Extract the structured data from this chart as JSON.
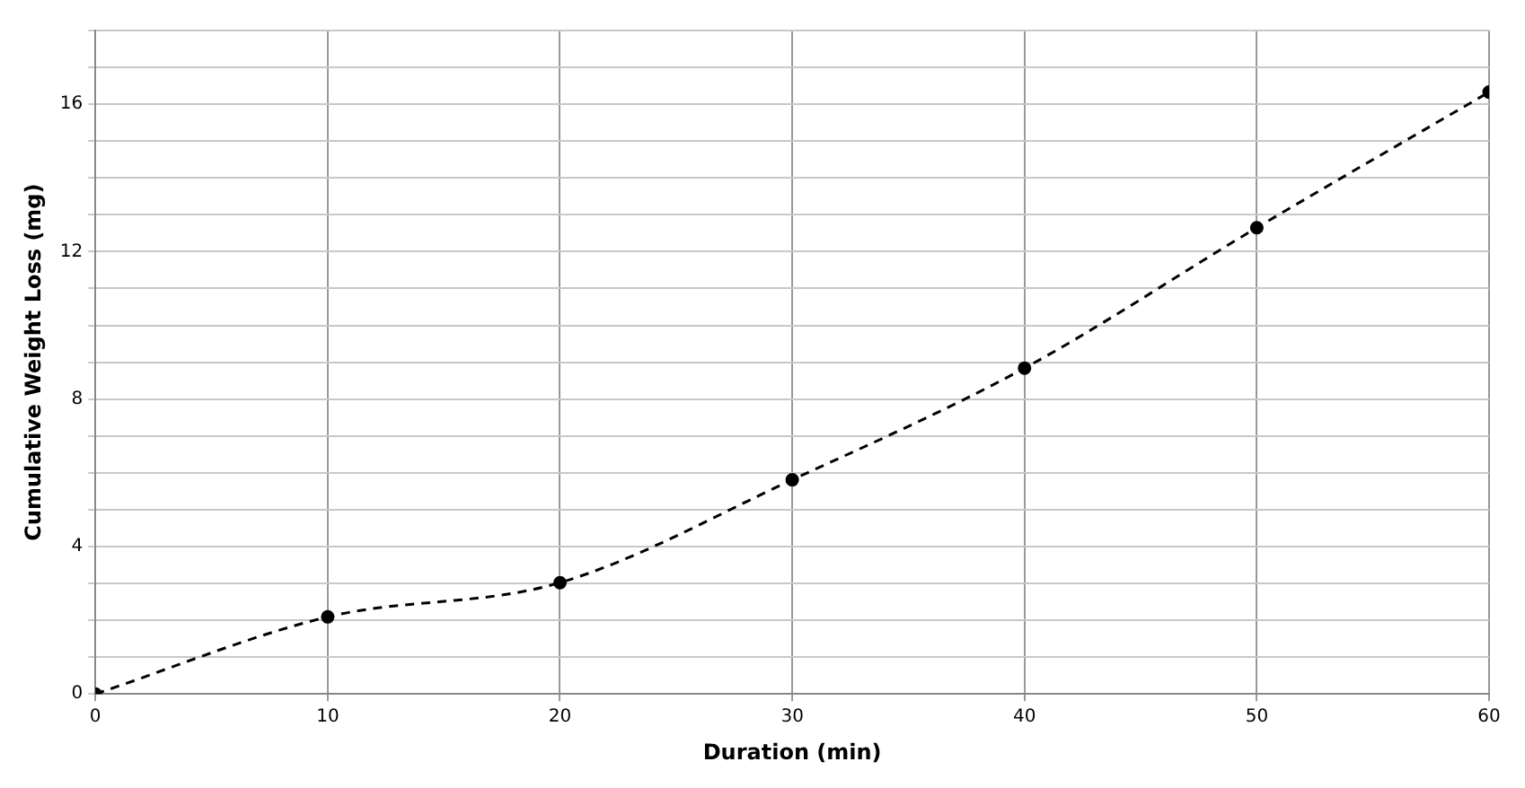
{
  "chart_data": {
    "type": "line",
    "xlabel": "Duration (min)",
    "ylabel": "Cumulative Weight Loss (mg)",
    "x": [
      0,
      10,
      20,
      30,
      40,
      50,
      60
    ],
    "series": [
      {
        "color": "#000000",
        "values": [
          0,
          2.09,
          3.02,
          5.81,
          8.84,
          12.65,
          16.33
        ]
      }
    ],
    "xlim": [
      0,
      60
    ],
    "xticks": [
      0,
      10,
      20,
      30,
      40,
      50,
      60
    ],
    "ylim": [
      0,
      18
    ],
    "yticks": [
      0,
      {
        "value": 1,
        "label": null
      },
      {
        "value": 2,
        "label": null
      },
      {
        "value": 3,
        "label": null
      },
      4,
      {
        "value": 5,
        "label": null
      },
      {
        "value": 6,
        "label": null
      },
      {
        "value": 7,
        "label": null
      },
      8,
      {
        "value": 9,
        "label": null
      },
      {
        "value": 10,
        "label": null
      },
      {
        "value": 11,
        "label": null
      },
      12,
      {
        "value": 13,
        "label": null
      },
      {
        "value": 14,
        "label": null
      },
      {
        "value": 15,
        "label": null
      },
      16,
      {
        "value": 17,
        "label": null
      },
      {
        "value": 18,
        "label": null
      }
    ],
    "grid": true,
    "legend": false,
    "marker": "circle",
    "line_style": "dashed"
  }
}
